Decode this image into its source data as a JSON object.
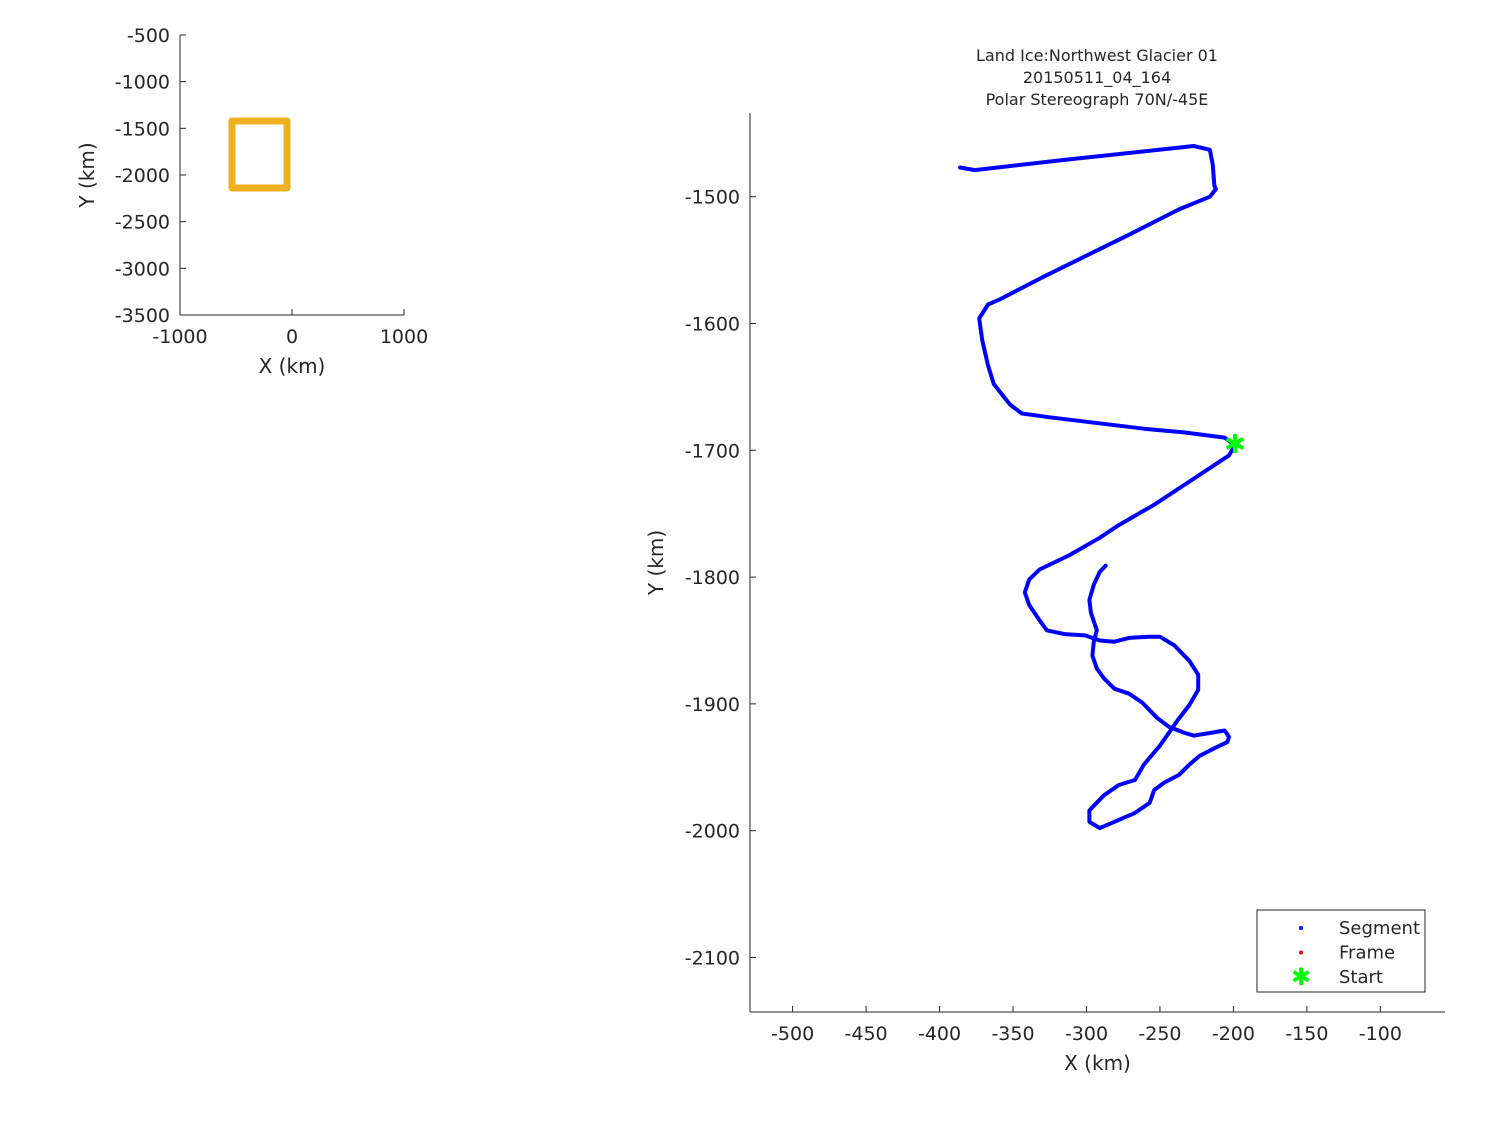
{
  "chart_data": [
    {
      "type": "line",
      "title": "",
      "xlabel": "X (km)",
      "ylabel": "Y (km)",
      "xlim": [
        -1000,
        1000
      ],
      "ylim": [
        -3500,
        -500
      ],
      "xticks": [
        "-1000",
        "0",
        "1000"
      ],
      "yticks": [
        "-500",
        "-1000",
        "-1500",
        "-2000",
        "-2500",
        "-3000",
        "-3500"
      ],
      "grid": false,
      "series": [
        {
          "color": "#edb120",
          "x": [
            -536,
            -45,
            -45,
            -536,
            -536
          ],
          "y": [
            -1421,
            -1421,
            -2139,
            -2139,
            -1421
          ]
        }
      ]
    },
    {
      "type": "line",
      "title": [
        "Land Ice:Northwest Glacier 01",
        "20150511_04_164",
        "Polar Stereograph 70N/-45E"
      ],
      "xlabel": "X (km)",
      "ylabel": "Y (km)",
      "xlim": [
        -529,
        -56
      ],
      "ylim": [
        -2143,
        -1434
      ],
      "xticks": [
        "-500",
        "-450",
        "-400",
        "-350",
        "-300",
        "-250",
        "-200",
        "-150",
        "-100"
      ],
      "yticks": [
        "-1500",
        "-1600",
        "-1700",
        "-1800",
        "-1900",
        "-2000",
        "-2100"
      ],
      "grid": false,
      "legend": {
        "placement": "bottom-right",
        "entries": [
          {
            "name": "Segment",
            "color": "#0000ff",
            "marker": "dot"
          },
          {
            "name": "Frame",
            "color": "#ff0000",
            "marker": "dot"
          },
          {
            "name": "Start",
            "color": "#00ff00",
            "marker": "star"
          }
        ]
      },
      "series": [
        {
          "name": "Segment",
          "color": "#0000ff",
          "x": [
            -386,
            -376,
            -315,
            -227,
            -216,
            -214,
            -213,
            -212,
            -216,
            -237,
            -271,
            -308,
            -329,
            -359,
            -367,
            -373,
            -371,
            -367,
            -363,
            -352,
            -344,
            -325,
            -261,
            -233,
            -206,
            -199,
            -203,
            -233,
            -254,
            -278,
            -291,
            -312,
            -332,
            -339,
            -342,
            -339,
            -332,
            -327,
            -315,
            -301,
            -291,
            -281,
            -271,
            -257,
            -250,
            -240,
            -230,
            -224,
            -224,
            -230,
            -238,
            -250,
            -261,
            -267,
            -278,
            -288,
            -298,
            -298,
            -291,
            -281,
            -267,
            -257,
            -254,
            -247,
            -237,
            -230,
            -223,
            -213,
            -204,
            -203,
            -206,
            -216,
            -227,
            -233,
            -244,
            -252,
            -262,
            -271,
            -281,
            -288,
            -293,
            -296,
            -295,
            -293,
            -297,
            -298,
            -295,
            -291,
            -287
          ],
          "y": [
            -1477,
            -1479,
            -1471,
            -1460,
            -1463,
            -1475,
            -1491,
            -1494,
            -1500,
            -1510,
            -1530,
            -1551,
            -1563,
            -1581,
            -1585,
            -1596,
            -1613,
            -1633,
            -1648,
            -1664,
            -1671,
            -1674,
            -1683,
            -1686,
            -1690,
            -1696,
            -1704,
            -1727,
            -1743,
            -1759,
            -1769,
            -1783,
            -1794,
            -1802,
            -1812,
            -1822,
            -1834,
            -1842,
            -1845,
            -1846,
            -1850,
            -1851,
            -1848,
            -1847,
            -1847,
            -1854,
            -1866,
            -1877,
            -1889,
            -1901,
            -1913,
            -1933,
            -1948,
            -1960,
            -1964,
            -1972,
            -1984,
            -1993,
            -1998,
            -1993,
            -1986,
            -1978,
            -1968,
            -1962,
            -1956,
            -1948,
            -1941,
            -1935,
            -1930,
            -1926,
            -1921,
            -1923,
            -1925,
            -1923,
            -1918,
            -1911,
            -1899,
            -1892,
            -1888,
            -1880,
            -1872,
            -1862,
            -1851,
            -1842,
            -1828,
            -1818,
            -1806,
            -1796,
            -1791
          ]
        },
        {
          "name": "Start",
          "color": "#00ff00",
          "x": [
            -199
          ],
          "y": [
            -1696
          ]
        }
      ]
    }
  ]
}
